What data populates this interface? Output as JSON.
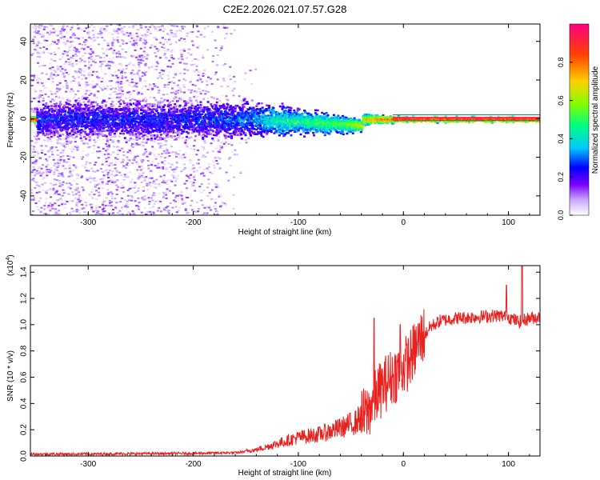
{
  "title": "C2E2.2026.021.07.57.G28",
  "chart_data": [
    {
      "type": "heatmap",
      "xlabel": "Height of straight line (km)",
      "ylabel": "Frequency (Hz)",
      "xlim": [
        -355,
        130
      ],
      "ylim": [
        -50,
        49
      ],
      "xticks": [
        -300,
        -200,
        -100,
        0,
        100
      ],
      "xtick_labels": [
        "-300",
        "-200",
        "-100",
        "0",
        "100"
      ],
      "yticks": [
        -40,
        -20,
        0,
        20,
        40
      ],
      "ytick_labels": [
        "-40",
        "-20",
        "0",
        "20",
        "40"
      ],
      "colorbar": {
        "label": "Normalized spectral amplitude",
        "range": [
          0,
          1
        ],
        "ticks": [
          0.0,
          0.2,
          0.4,
          0.6,
          0.8
        ],
        "tick_labels": [
          "0.0",
          "0.2",
          "0.4",
          "0.6",
          "0.8"
        ],
        "colors": [
          "#ffffff",
          "#c8a8ff",
          "#7a00ff",
          "#0000ff",
          "#00c8ff",
          "#00ff80",
          "#80ff00",
          "#ffd000",
          "#ff4000",
          "#ff0080"
        ]
      },
      "band": [
        {
          "x": -350,
          "halfwidth": 10,
          "amplitude": 0.25
        },
        {
          "x": -300,
          "halfwidth": 10,
          "amplitude": 0.25
        },
        {
          "x": -250,
          "halfwidth": 10,
          "amplitude": 0.25
        },
        {
          "x": -200,
          "halfwidth": 10,
          "amplitude": 0.25
        },
        {
          "x": -150,
          "halfwidth": 10,
          "amplitude": 0.3
        },
        {
          "x": -120,
          "halfwidth": 8,
          "amplitude": 0.45
        },
        {
          "x": -90,
          "halfwidth": 6,
          "amplitude": 0.5
        },
        {
          "x": -60,
          "halfwidth": 5,
          "amplitude": 0.55
        },
        {
          "x": -40,
          "halfwidth": 3,
          "amplitude": 0.7
        },
        {
          "x": -20,
          "halfwidth": 2,
          "amplitude": 0.85
        },
        {
          "x": 0,
          "halfwidth": 1.5,
          "amplitude": 0.95
        },
        {
          "x": 130,
          "halfwidth": 1.5,
          "amplitude": 0.95
        }
      ]
    },
    {
      "type": "line",
      "xlabel": "Height of straight line (km)",
      "ylabel": "SNR (10 * v/v)",
      "yscale_label": "(x10",
      "yscale_exponent": "4",
      "yscale_close": ")",
      "xlim": [
        -355,
        130
      ],
      "ylim": [
        0,
        1.45
      ],
      "xticks": [
        -300,
        -200,
        -100,
        0,
        100
      ],
      "xtick_labels": [
        "-300",
        "-200",
        "-100",
        "0",
        "100"
      ],
      "yticks": [
        0.0,
        0.2,
        0.4,
        0.6,
        0.8,
        1.0,
        1.2,
        1.4
      ],
      "ytick_labels": [
        "0.0",
        "0.2",
        "0.4",
        "0.6",
        "0.8",
        "1.0",
        "1.2",
        "1.4"
      ],
      "series": [
        {
          "name": "SNR",
          "color": "#e8201e",
          "x": [
            -355,
            -300,
            -250,
            -200,
            -160,
            -140,
            -120,
            -100,
            -80,
            -60,
            -45,
            -35,
            -25,
            -15,
            -5,
            5,
            15,
            25,
            35,
            50,
            70,
            90,
            100,
            110,
            120,
            130
          ],
          "y": [
            0.015,
            0.015,
            0.018,
            0.02,
            0.025,
            0.04,
            0.08,
            0.12,
            0.14,
            0.18,
            0.22,
            0.3,
            0.45,
            0.55,
            0.62,
            0.7,
            0.85,
            0.98,
            1.03,
            1.05,
            1.06,
            1.07,
            1.06,
            1.02,
            1.05,
            1.06
          ]
        }
      ],
      "spikes": [
        {
          "x": -28,
          "y": 1.05
        },
        {
          "x": -3,
          "y": 1.0
        },
        {
          "x": 98,
          "y": 1.3
        },
        {
          "x": 113,
          "y": 1.45
        }
      ]
    }
  ]
}
